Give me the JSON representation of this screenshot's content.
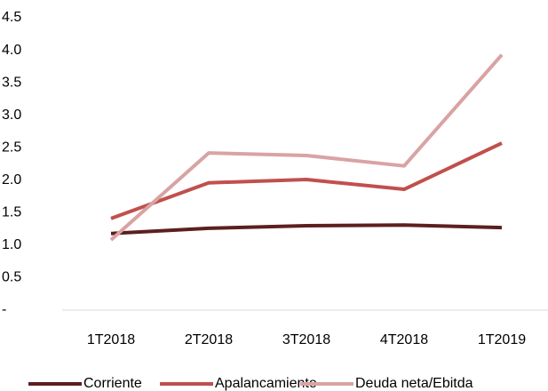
{
  "chart_data": {
    "type": "line",
    "categories": [
      "1T2018",
      "2T2018",
      "3T2018",
      "4T2018",
      "1T2019"
    ],
    "series": [
      {
        "name": "Corriente",
        "color": "#5c1f1f",
        "values": [
          1.18,
          1.26,
          1.3,
          1.31,
          1.27
        ]
      },
      {
        "name": "Apalancamiento",
        "color": "#c0504d",
        "values": [
          1.41,
          1.96,
          2.01,
          1.86,
          2.57
        ]
      },
      {
        "name": "Deuda neta/Ebitda",
        "color": "#d9a3a3",
        "values": [
          1.08,
          2.42,
          2.38,
          2.22,
          3.93
        ]
      }
    ],
    "ylim": [
      0,
      4.5
    ],
    "yticks": [
      {
        "value": 0,
        "label": "-"
      },
      0.5,
      {
        "value": 1,
        "label": "1.0"
      },
      1.5,
      {
        "value": 2,
        "label": "2.0"
      },
      2.5,
      {
        "value": 3,
        "label": "3.0"
      },
      3.5,
      {
        "value": 4,
        "label": "4.0"
      },
      4.5
    ],
    "legend": "bottom"
  }
}
